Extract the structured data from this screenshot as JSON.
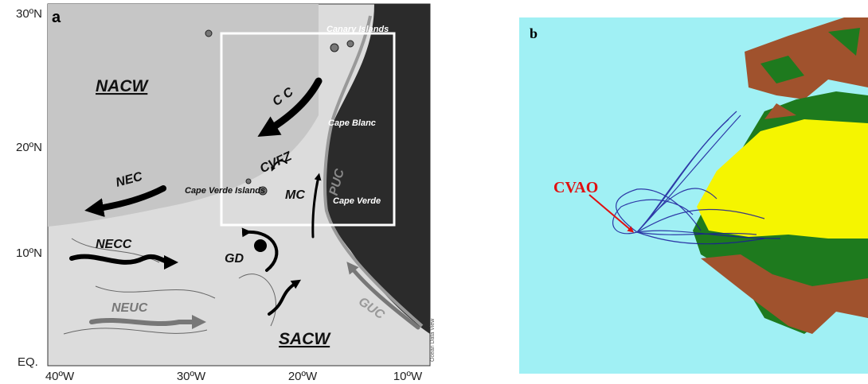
{
  "panel_a": {
    "label": "a",
    "lat_labels": [
      "30ºN",
      "20ºN",
      "10ºN",
      "EQ."
    ],
    "lon_labels": [
      "40ºW",
      "30ºW",
      "20ºW",
      "10ºW"
    ],
    "water_masses": [
      "NACW",
      "SACW"
    ],
    "currents": [
      "C C",
      "CVFZ",
      "NEC",
      "NECC",
      "NEUC",
      "GD",
      "MC",
      "PUC",
      "GUC"
    ],
    "places": [
      "Canary Islands",
      "Cape Blanc",
      "Cape Verde Islands",
      "Cape Verde"
    ],
    "credit": "Ocean Data View"
  },
  "panel_b": {
    "label": "b",
    "station": "CVAO"
  }
}
